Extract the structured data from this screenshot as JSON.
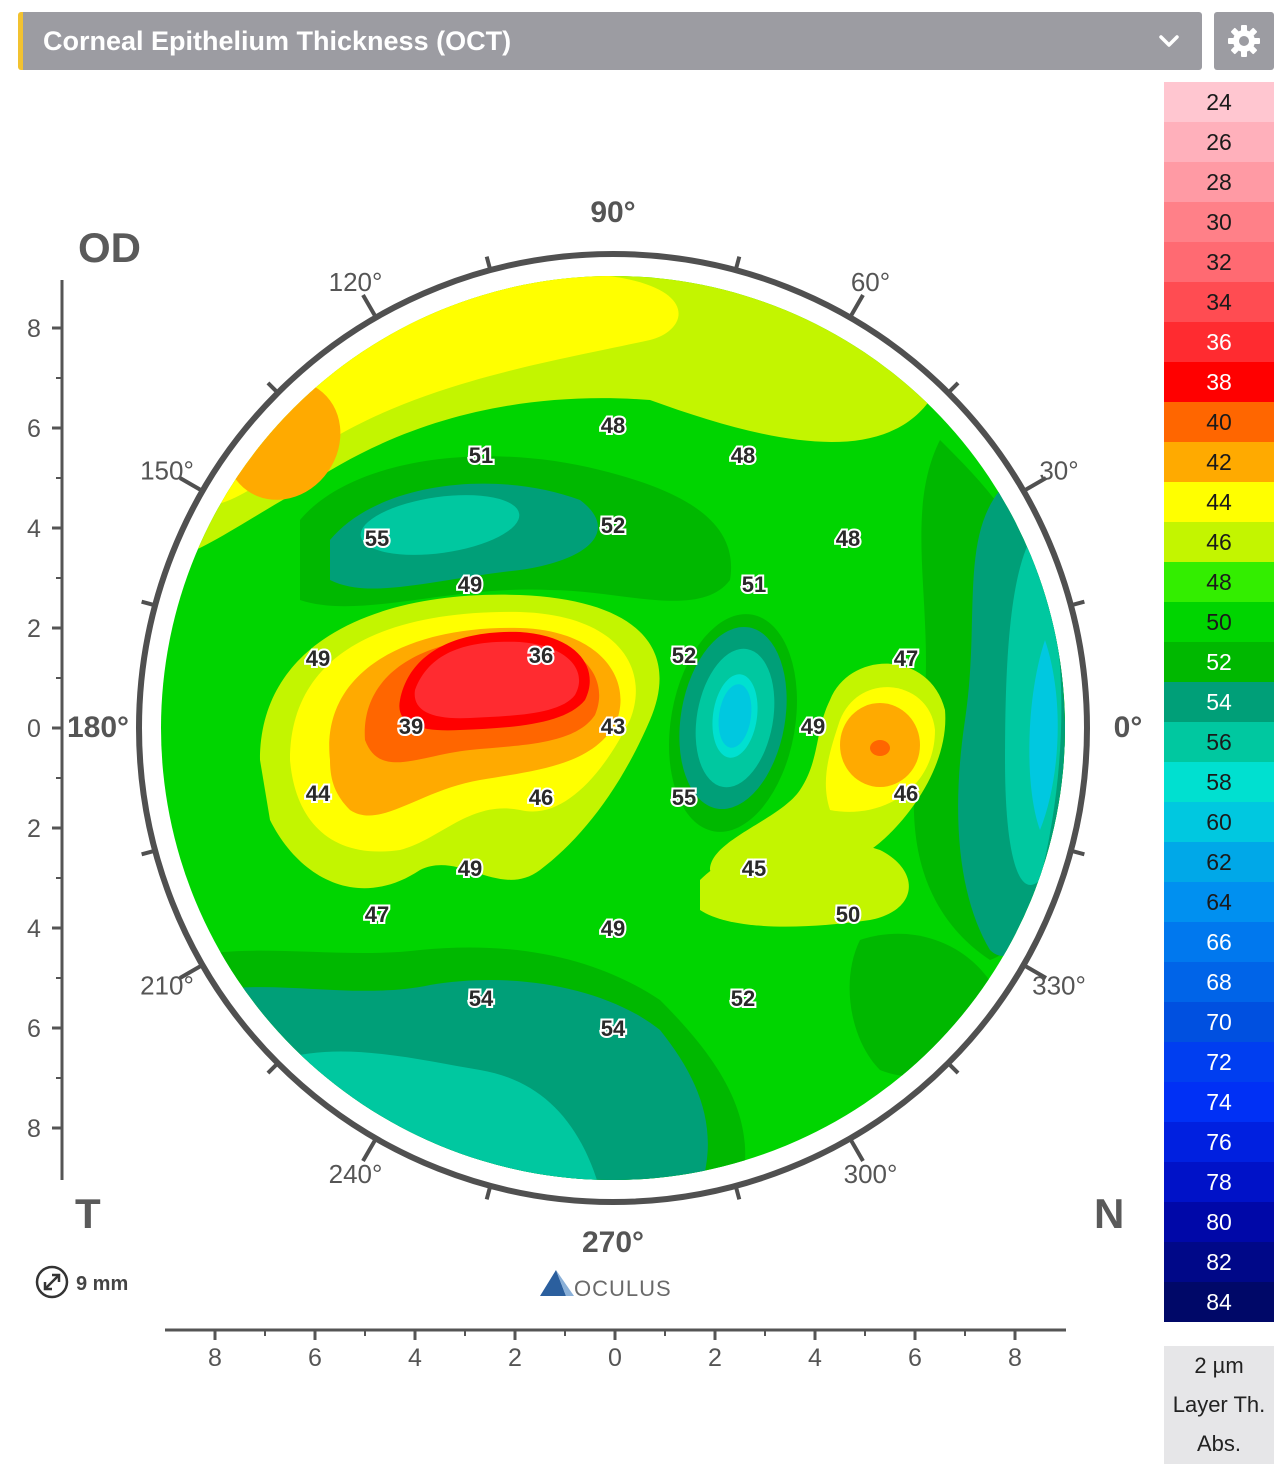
{
  "header": {
    "title": "Corneal Epithelium Thickness (OCT)",
    "chevron_icon": "chevron-down-icon",
    "settings_icon": "gear-icon"
  },
  "map": {
    "eye_label": "OD",
    "temporal_label": "T",
    "nasal_label": "N",
    "diameter_label": "9 mm",
    "diameter_icon": "resize-diagonal-icon",
    "brand_text": "OCULUS",
    "brand_icon": "oculus-logo-icon",
    "angle_labels": [
      "90°",
      "60°",
      "30°",
      "0°",
      "330°",
      "300°",
      "270°",
      "240°",
      "210°",
      "180°",
      "150°",
      "120°"
    ],
    "y_ticks": [
      "8",
      "6",
      "4",
      "2",
      "0",
      "2",
      "4",
      "6",
      "8"
    ],
    "x_ticks": [
      "8",
      "6",
      "4",
      "2",
      "0",
      "2",
      "4",
      "6",
      "8"
    ],
    "thickness_values": [
      "48",
      "51",
      "48",
      "55",
      "52",
      "48",
      "49",
      "51",
      "49",
      "36",
      "52",
      "47",
      "39",
      "43",
      "49",
      "44",
      "46",
      "55",
      "46",
      "49",
      "45",
      "47",
      "49",
      "50",
      "54",
      "52",
      "54"
    ]
  },
  "legend": {
    "values": [
      "24",
      "26",
      "28",
      "30",
      "32",
      "34",
      "36",
      "38",
      "40",
      "42",
      "44",
      "46",
      "48",
      "50",
      "52",
      "54",
      "56",
      "58",
      "60",
      "62",
      "64",
      "66",
      "68",
      "70",
      "72",
      "74",
      "76",
      "78",
      "80",
      "82",
      "84"
    ],
    "colors": [
      "#ffc6d0",
      "#ffb0bb",
      "#ff9aa4",
      "#ff8088",
      "#ff6a72",
      "#ff4c52",
      "#ff2b30",
      "#ff0000",
      "#ff6600",
      "#ffaa00",
      "#ffff00",
      "#c3f500",
      "#33ee00",
      "#00d500",
      "#00b800",
      "#009f78",
      "#00c8a0",
      "#00e0d0",
      "#00c8e0",
      "#00a8e8",
      "#0090f0",
      "#0078ee",
      "#0064e8",
      "#0050e0",
      "#003ef0",
      "#0030f5",
      "#0020e0",
      "#0012c8",
      "#0008a8",
      "#000888",
      "#000868"
    ],
    "unit": "2 µm",
    "mode": "Layer Th.",
    "scale": "Abs."
  }
}
